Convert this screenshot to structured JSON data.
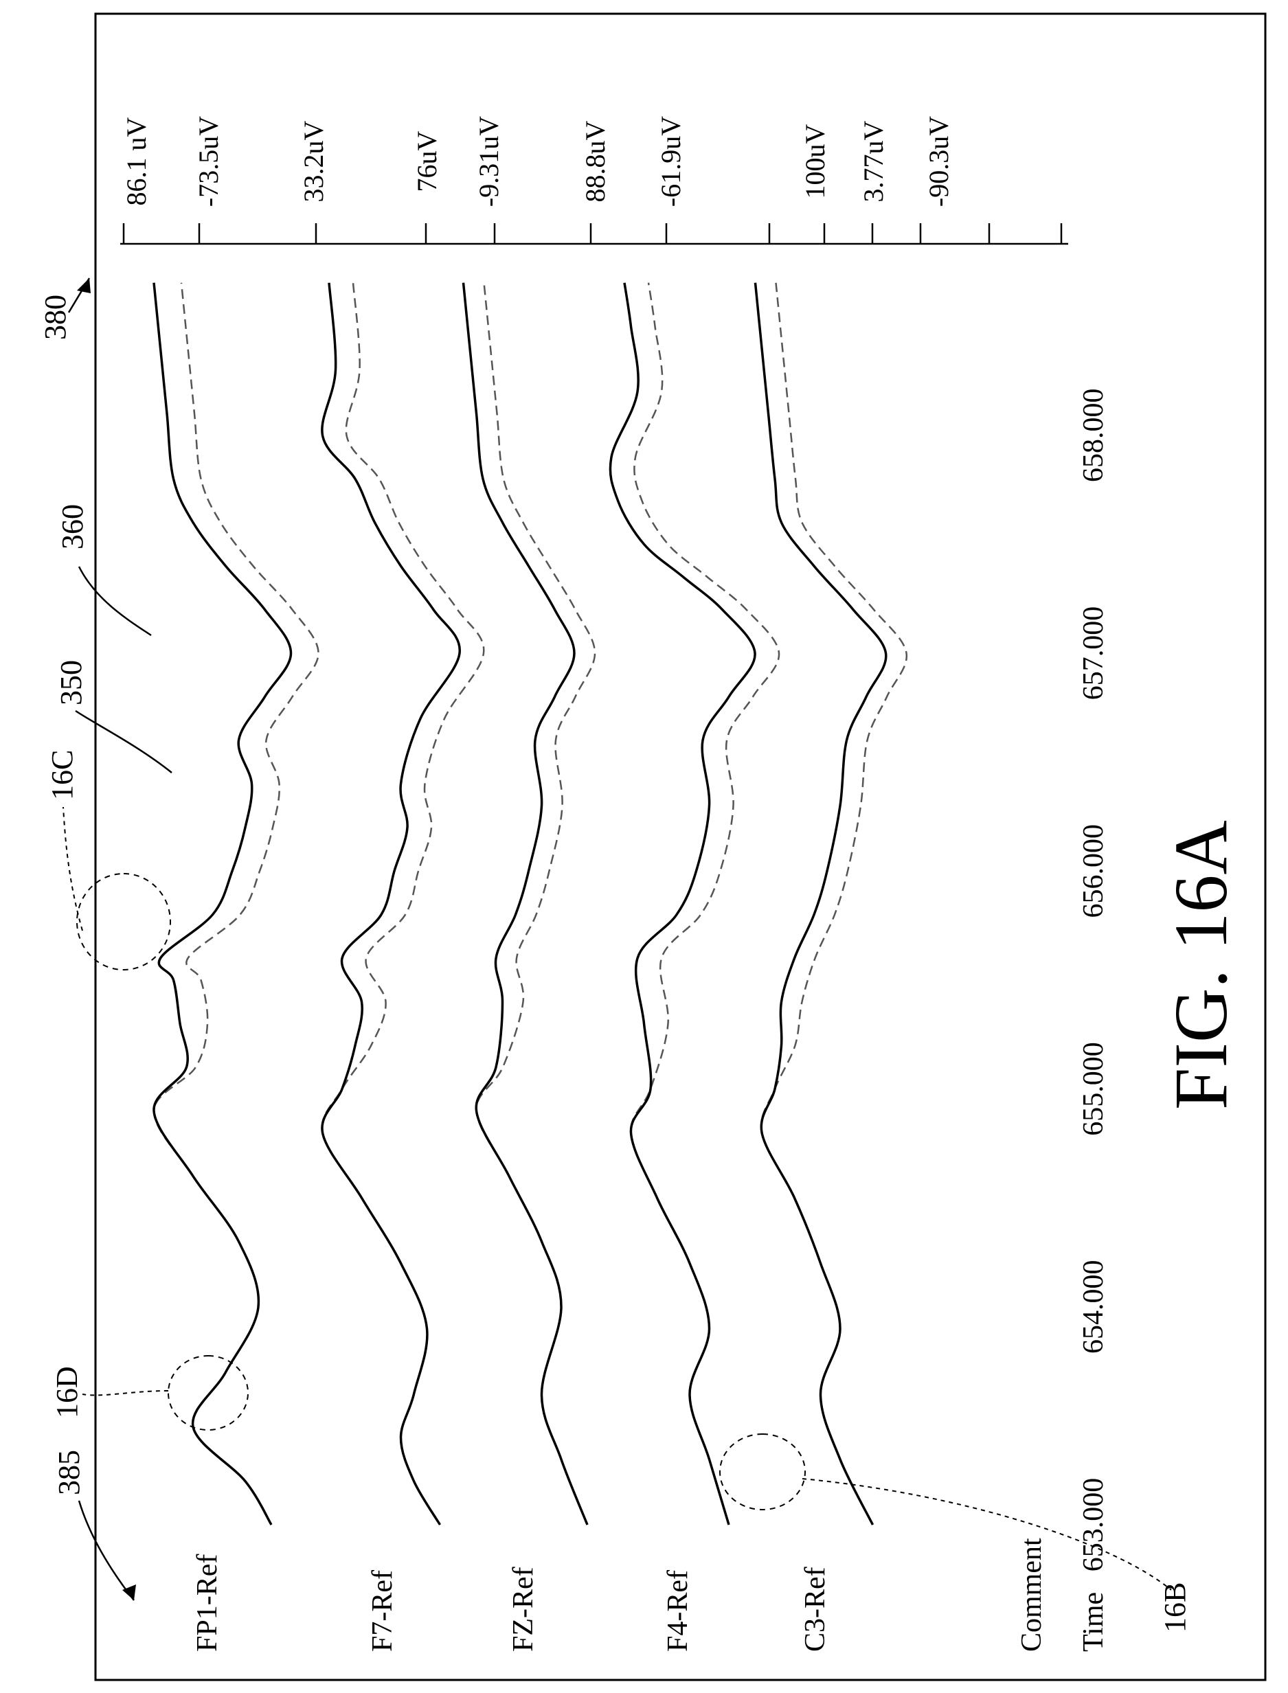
{
  "figure": {
    "caption": "FIG. 16A",
    "ref_figure": "380",
    "ref_labels": "385",
    "ref_solid_trace": "350",
    "ref_dashed_trace": "360",
    "callouts": [
      {
        "label": "16B"
      },
      {
        "label": "16C"
      },
      {
        "label": "16D"
      }
    ]
  },
  "chart_data": {
    "type": "line",
    "title": "",
    "row_labels": [
      "Comment",
      "Time"
    ],
    "x": {
      "unit": "s",
      "ticks": [
        "653.000",
        "654.000",
        "655.000",
        "656.000",
        "657.000",
        "658.000"
      ],
      "range": [
        653.0,
        658.8
      ]
    },
    "amplitude_scale": [
      "86.1 uV",
      "-73.5uV",
      "33.2uV",
      "76uV",
      "-9.31uV",
      "88.8uV",
      "-61.9uV",
      "100uV",
      "3.77uV",
      "-90.3uV"
    ],
    "channels": [
      {
        "name": "FP1-Ref",
        "points": [
          [
            653.0,
            -1.0
          ],
          [
            653.2,
            -0.6
          ],
          [
            653.45,
            0.2
          ],
          [
            653.7,
            -0.3
          ],
          [
            654.0,
            -0.8
          ],
          [
            654.3,
            -0.5
          ],
          [
            654.6,
            0.2
          ],
          [
            654.9,
            0.8
          ],
          [
            655.1,
            0.3
          ],
          [
            655.3,
            0.4
          ],
          [
            655.5,
            0.5
          ],
          [
            655.6,
            0.7
          ],
          [
            655.8,
            -0.1
          ],
          [
            656.0,
            -0.4
          ],
          [
            656.2,
            -0.6
          ],
          [
            656.4,
            -0.7
          ],
          [
            656.6,
            -0.5
          ],
          [
            656.8,
            -0.9
          ],
          [
            657.0,
            -1.3
          ],
          [
            657.2,
            -0.9
          ],
          [
            657.4,
            -0.3
          ],
          [
            657.6,
            0.2
          ],
          [
            657.8,
            0.5
          ],
          [
            658.1,
            0.6
          ],
          [
            658.4,
            0.7
          ],
          [
            658.7,
            0.8
          ]
        ]
      },
      {
        "name": "F7-Ref",
        "points": [
          [
            653.0,
            -0.9
          ],
          [
            653.2,
            -0.5
          ],
          [
            653.4,
            -0.3
          ],
          [
            653.6,
            -0.5
          ],
          [
            653.9,
            -0.7
          ],
          [
            654.2,
            -0.3
          ],
          [
            654.5,
            0.3
          ],
          [
            654.8,
            0.9
          ],
          [
            655.0,
            0.6
          ],
          [
            655.2,
            0.4
          ],
          [
            655.4,
            0.3
          ],
          [
            655.6,
            0.6
          ],
          [
            655.8,
            0.0
          ],
          [
            656.0,
            -0.2
          ],
          [
            656.2,
            -0.4
          ],
          [
            656.4,
            -0.3
          ],
          [
            656.7,
            -0.6
          ],
          [
            657.0,
            -1.2
          ],
          [
            657.2,
            -0.8
          ],
          [
            657.4,
            -0.3
          ],
          [
            657.6,
            0.1
          ],
          [
            657.8,
            0.4
          ],
          [
            658.0,
            0.9
          ],
          [
            658.3,
            0.7
          ],
          [
            658.7,
            0.8
          ]
        ]
      },
      {
        "name": "FZ-Ref",
        "points": [
          [
            653.0,
            -1.0
          ],
          [
            653.3,
            -0.6
          ],
          [
            653.6,
            -0.3
          ],
          [
            654.0,
            -0.6
          ],
          [
            654.3,
            -0.3
          ],
          [
            654.6,
            0.2
          ],
          [
            654.9,
            0.7
          ],
          [
            655.1,
            0.4
          ],
          [
            655.4,
            0.3
          ],
          [
            655.6,
            0.4
          ],
          [
            655.8,
            0.1
          ],
          [
            656.0,
            -0.1
          ],
          [
            656.3,
            -0.3
          ],
          [
            656.6,
            -0.2
          ],
          [
            656.8,
            -0.5
          ],
          [
            657.0,
            -0.8
          ],
          [
            657.2,
            -0.5
          ],
          [
            657.4,
            -0.1
          ],
          [
            657.6,
            0.3
          ],
          [
            657.8,
            0.6
          ],
          [
            658.1,
            0.7
          ],
          [
            658.4,
            0.8
          ],
          [
            658.7,
            0.9
          ]
        ]
      },
      {
        "name": "F4-Ref",
        "points": [
          [
            653.0,
            -0.8
          ],
          [
            653.3,
            -0.5
          ],
          [
            653.6,
            -0.2
          ],
          [
            653.9,
            -0.5
          ],
          [
            654.2,
            -0.2
          ],
          [
            654.5,
            0.3
          ],
          [
            654.8,
            0.7
          ],
          [
            655.0,
            0.4
          ],
          [
            655.3,
            0.5
          ],
          [
            655.6,
            0.6
          ],
          [
            655.8,
            0.0
          ],
          [
            656.0,
            -0.3
          ],
          [
            656.3,
            -0.5
          ],
          [
            656.6,
            -0.4
          ],
          [
            656.8,
            -0.8
          ],
          [
            657.0,
            -1.2
          ],
          [
            657.2,
            -0.7
          ],
          [
            657.35,
            -0.1
          ],
          [
            657.5,
            0.5
          ],
          [
            657.7,
            0.9
          ],
          [
            657.9,
            1.0
          ],
          [
            658.2,
            0.6
          ],
          [
            658.5,
            0.7
          ],
          [
            658.7,
            0.8
          ]
        ]
      },
      {
        "name": "C3-Ref",
        "points": [
          [
            653.0,
            -0.9
          ],
          [
            653.3,
            -0.4
          ],
          [
            653.6,
            -0.1
          ],
          [
            653.9,
            -0.4
          ],
          [
            654.2,
            -0.1
          ],
          [
            654.5,
            0.3
          ],
          [
            654.8,
            0.8
          ],
          [
            655.0,
            0.6
          ],
          [
            655.2,
            0.5
          ],
          [
            655.4,
            0.5
          ],
          [
            655.6,
            0.3
          ],
          [
            655.8,
            0.0
          ],
          [
            656.0,
            -0.2
          ],
          [
            656.3,
            -0.4
          ],
          [
            656.6,
            -0.5
          ],
          [
            656.8,
            -0.8
          ],
          [
            657.0,
            -1.1
          ],
          [
            657.2,
            -0.6
          ],
          [
            657.4,
            0.0
          ],
          [
            657.6,
            0.5
          ],
          [
            657.8,
            0.6
          ],
          [
            658.1,
            0.7
          ],
          [
            658.4,
            0.8
          ],
          [
            658.7,
            0.9
          ]
        ]
      }
    ]
  }
}
